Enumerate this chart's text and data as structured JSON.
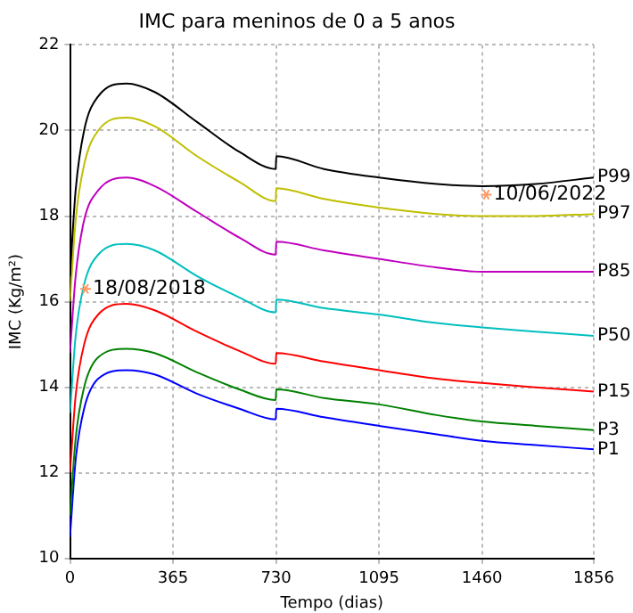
{
  "chart_data": {
    "type": "line",
    "title": "IMC para meninos de 0 a 5 anos",
    "xlabel": "Tempo (dias)",
    "ylabel": "IMC (Kg/m²)",
    "x": [
      0,
      20,
      50,
      100,
      200,
      300,
      450,
      600,
      729,
      731,
      900,
      1095,
      1300,
      1460,
      1650,
      1856
    ],
    "series": [
      {
        "name": "P99",
        "color": "#000000",
        "values": [
          16.6,
          18.6,
          20.0,
          20.8,
          21.1,
          20.9,
          20.2,
          19.5,
          19.1,
          19.4,
          19.1,
          18.9,
          18.75,
          18.7,
          18.75,
          18.9
        ]
      },
      {
        "name": "P97",
        "color": "#bfbf00",
        "values": [
          16.0,
          17.9,
          19.2,
          20.0,
          20.3,
          20.1,
          19.4,
          18.8,
          18.35,
          18.65,
          18.4,
          18.2,
          18.05,
          18.0,
          18.0,
          18.05
        ]
      },
      {
        "name": "P85",
        "color": "#bf00bf",
        "values": [
          14.8,
          16.6,
          17.9,
          18.6,
          18.9,
          18.7,
          18.1,
          17.5,
          17.1,
          17.4,
          17.2,
          17.0,
          16.8,
          16.7,
          16.7,
          16.7
        ]
      },
      {
        "name": "P50",
        "color": "#00bfbf",
        "values": [
          13.4,
          15.2,
          16.4,
          17.1,
          17.35,
          17.2,
          16.6,
          16.1,
          15.75,
          16.05,
          15.85,
          15.7,
          15.5,
          15.4,
          15.3,
          15.2
        ]
      },
      {
        "name": "P15",
        "color": "#ff0000",
        "values": [
          12.0,
          13.8,
          15.0,
          15.7,
          15.95,
          15.8,
          15.3,
          14.85,
          14.55,
          14.8,
          14.6,
          14.4,
          14.2,
          14.1,
          14.0,
          13.9
        ]
      },
      {
        "name": "P3",
        "color": "#008000",
        "values": [
          11.0,
          12.8,
          14.0,
          14.7,
          14.9,
          14.8,
          14.35,
          13.95,
          13.7,
          13.95,
          13.75,
          13.6,
          13.35,
          13.2,
          13.1,
          13.0
        ]
      },
      {
        "name": "P1",
        "color": "#0000ff",
        "values": [
          10.5,
          12.3,
          13.5,
          14.2,
          14.4,
          14.3,
          13.85,
          13.5,
          13.25,
          13.5,
          13.3,
          13.1,
          12.9,
          12.75,
          12.65,
          12.55
        ]
      }
    ],
    "annotations": [
      {
        "text": "18/08/2018",
        "x": 55,
        "y": 16.3
      },
      {
        "text": "10/06/2022",
        "x": 1475,
        "y": 18.5
      }
    ],
    "xlim": [
      0,
      1856
    ],
    "xticks": [
      0,
      365,
      730,
      1095,
      1460,
      1856
    ],
    "ylim": [
      10,
      22
    ],
    "yticks": [
      10,
      12,
      14,
      16,
      18,
      20,
      22
    ],
    "grid": true,
    "legend": false
  }
}
